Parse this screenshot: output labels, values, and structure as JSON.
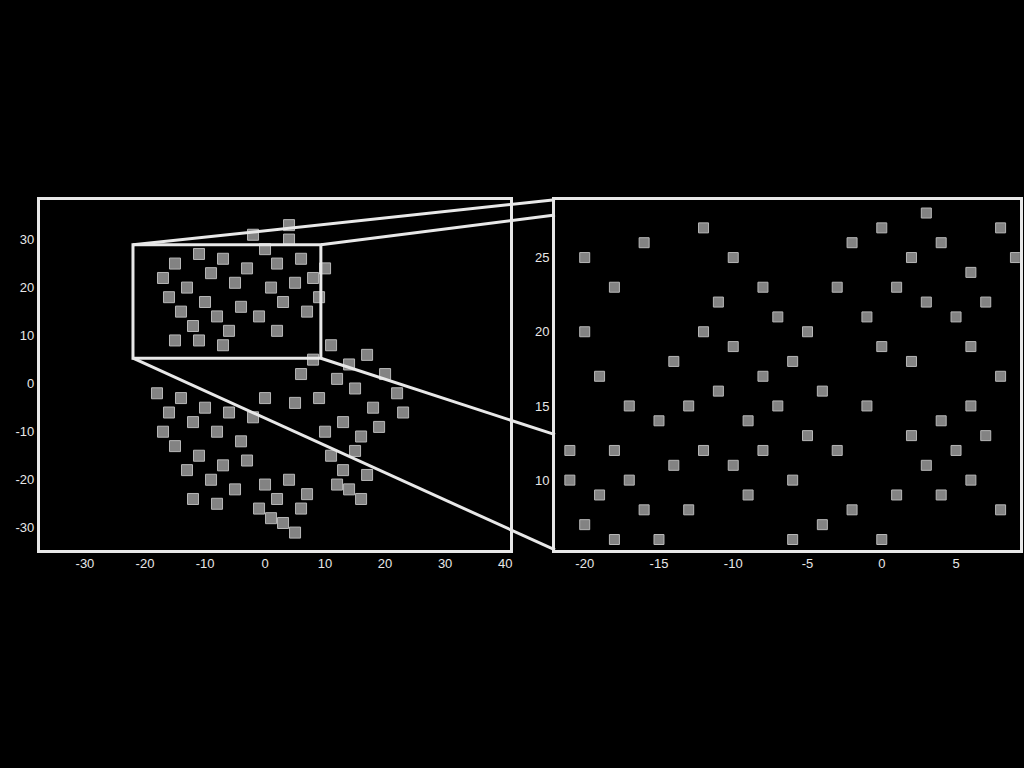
{
  "chart_data": [
    {
      "type": "scatter",
      "color": "#9a9a9a",
      "marker": "square",
      "xlim": [
        -37.5,
        40.8
      ],
      "ylim": [
        -34.6,
        38.3
      ],
      "xticks": [
        -30,
        -20,
        -10,
        0,
        10,
        20,
        30,
        40
      ],
      "yticks": [
        -30,
        -20,
        -10,
        0,
        10,
        20,
        30
      ],
      "x": [
        -17,
        -15,
        -13,
        -11,
        -9,
        -7,
        -5,
        -14,
        -12,
        -10,
        -8,
        -6,
        -16,
        -4,
        -3,
        -11,
        -7,
        -15,
        0,
        2,
        4,
        6,
        8,
        1,
        3,
        5,
        7,
        -1,
        2,
        9,
        10,
        -2,
        4,
        8,
        11,
        14,
        17,
        20,
        22,
        18,
        15,
        12,
        9,
        13,
        16,
        19,
        23,
        10,
        6,
        5,
        -18,
        -16,
        -14,
        -12,
        -10,
        -8,
        -6,
        -4,
        -15,
        -13,
        -11,
        -9,
        -7,
        -5,
        -3,
        -17,
        -12,
        -8,
        -2,
        0,
        0,
        2,
        4,
        6,
        3,
        5,
        1,
        7,
        -1,
        11,
        13,
        15,
        17,
        14,
        12,
        16
      ],
      "y": [
        22,
        25,
        20,
        27,
        23,
        26,
        21,
        15,
        12,
        17,
        14,
        11,
        18,
        16,
        24,
        9,
        8,
        9,
        28,
        25,
        30,
        26,
        22,
        20,
        17,
        21,
        15,
        14,
        11,
        18,
        24,
        31,
        33,
        5,
        8,
        4,
        6,
        2,
        -2,
        -5,
        -1,
        1,
        -3,
        -8,
        -11,
        -9,
        -6,
        -10,
        2,
        -4,
        -2,
        -6,
        -3,
        -8,
        -5,
        -10,
        -6,
        -12,
        -13,
        -18,
        -15,
        -20,
        -17,
        -22,
        -16,
        -10,
        -24,
        -25,
        -7,
        -3,
        -21,
        -24,
        -20,
        -26,
        -29,
        -31,
        -28,
        -23,
        -26,
        -15,
        -18,
        -14,
        -19,
        -22,
        -21,
        -24
      ]
    },
    {
      "type": "scatter",
      "color": "#9a9a9a",
      "marker": "square",
      "xlim": [
        -22,
        9.3
      ],
      "ylim": [
        5.3,
        28.9
      ],
      "xticks": [
        -20,
        -15,
        -10,
        -5,
        0,
        5
      ],
      "yticks": [
        10,
        15,
        20,
        25
      ],
      "x": [
        -14,
        -12,
        -10,
        -8,
        -6,
        -13,
        -11,
        -9,
        -7,
        -5,
        -12,
        -10,
        -8,
        -6,
        -14,
        -4,
        -11,
        -7,
        -9,
        -13,
        -5,
        -15,
        -3,
        -8,
        -10,
        -2,
        0,
        2,
        4,
        6,
        8,
        1,
        3,
        5,
        7,
        -1,
        9,
        3,
        6,
        0,
        2,
        -3,
        -21,
        -19,
        -17,
        -20,
        -18,
        -16,
        -21,
        -18,
        2,
        4,
        5,
        3,
        6,
        4,
        7,
        8,
        1,
        6,
        -20,
        -18,
        -16,
        -19,
        -17,
        -2,
        0,
        -4,
        -15,
        -1,
        8,
        -20,
        -6,
        -12
      ],
      "y": [
        18,
        20,
        19,
        17,
        18,
        15,
        16,
        14,
        15,
        13,
        12,
        11,
        12,
        10,
        11,
        16,
        22,
        21,
        9,
        8,
        20,
        14,
        12,
        23,
        25,
        26,
        27,
        25,
        26,
        24,
        27,
        23,
        22,
        21,
        22,
        21,
        25,
        28,
        19,
        19,
        18,
        23,
        10,
        9,
        10,
        7,
        6,
        8,
        12,
        12,
        13,
        14,
        12,
        11,
        10,
        9,
        13,
        8,
        9,
        15,
        20,
        23,
        26,
        17,
        15,
        8,
        6,
        7,
        6,
        15,
        17,
        25,
        6,
        27
      ]
    }
  ]
}
